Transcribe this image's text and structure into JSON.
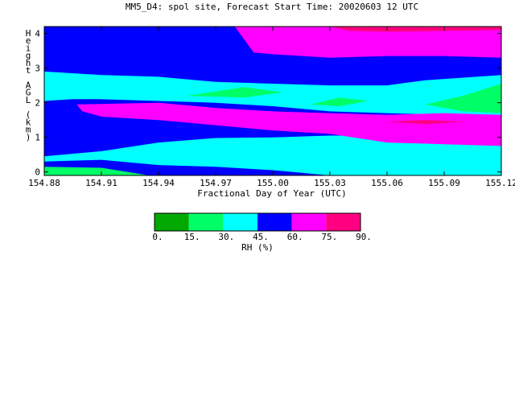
{
  "chart_data": {
    "type": "heatmap",
    "title": "MM5_D4: spol site,  Forecast Start Time: 20020603 12 UTC",
    "xlabel": "Fractional Day of Year (UTC)",
    "ylabel": "Height AGL (km)",
    "x_ticks": [
      "154.88",
      "154.91",
      "154.94",
      "154.97",
      "155.00",
      "155.03",
      "155.06",
      "155.09",
      "155.12"
    ],
    "y_ticks": [
      "0",
      "1",
      "2",
      "3",
      "4"
    ],
    "xlim": [
      154.88,
      155.12
    ],
    "ylim": [
      -0.1,
      4.2
    ],
    "colorbar": {
      "label": "RH (%)",
      "ticks": [
        "0.",
        "15.",
        "30.",
        "45.",
        "60.",
        "75.",
        "90."
      ],
      "bins": [
        {
          "range": [
            0,
            15
          ],
          "color": "#00a800"
        },
        {
          "range": [
            15,
            30
          ],
          "color": "#00ff66"
        },
        {
          "range": [
            30,
            45
          ],
          "color": "#00ffff"
        },
        {
          "range": [
            45,
            60
          ],
          "color": "#0000ff"
        },
        {
          "range": [
            60,
            75
          ],
          "color": "#ff00ff"
        },
        {
          "range": [
            75,
            90
          ],
          "color": "#ff0080"
        }
      ]
    },
    "regions": [
      {
        "rh_bin": "45-60",
        "color": "#0000ff",
        "points": [
          [
            154.88,
            -0.1
          ],
          [
            155.12,
            -0.1
          ],
          [
            155.12,
            4.2
          ],
          [
            154.88,
            4.2
          ]
        ]
      },
      {
        "rh_bin": "30-45",
        "color": "#00ffff",
        "points": [
          [
            154.88,
            0.45
          ],
          [
            154.91,
            0.6
          ],
          [
            154.94,
            0.85
          ],
          [
            154.97,
            0.98
          ],
          [
            155.0,
            1.0
          ],
          [
            155.03,
            1.05
          ],
          [
            155.06,
            1.05
          ],
          [
            155.09,
            1.05
          ],
          [
            155.12,
            1.05
          ],
          [
            155.12,
            -0.1
          ],
          [
            155.03,
            -0.1
          ],
          [
            155.0,
            0.05
          ],
          [
            154.97,
            0.15
          ],
          [
            154.94,
            0.2
          ],
          [
            154.91,
            0.35
          ],
          [
            154.88,
            0.3
          ]
        ]
      },
      {
        "rh_bin": "15-30",
        "color": "#00ff66",
        "points": [
          [
            154.88,
            -0.1
          ],
          [
            154.88,
            0.15
          ],
          [
            154.91,
            0.12
          ],
          [
            154.935,
            -0.1
          ]
        ]
      },
      {
        "rh_bin": "30-45",
        "color": "#00ffff",
        "points": [
          [
            154.88,
            2.9
          ],
          [
            154.91,
            2.8
          ],
          [
            154.94,
            2.75
          ],
          [
            154.97,
            2.6
          ],
          [
            155.0,
            2.55
          ],
          [
            155.03,
            2.5
          ],
          [
            155.06,
            2.5
          ],
          [
            155.08,
            2.65
          ],
          [
            155.12,
            2.8
          ],
          [
            155.12,
            1.6
          ],
          [
            155.09,
            1.65
          ],
          [
            155.06,
            1.7
          ],
          [
            155.03,
            1.75
          ],
          [
            155.0,
            1.9
          ],
          [
            154.97,
            2.0
          ],
          [
            154.94,
            2.05
          ],
          [
            154.91,
            2.1
          ],
          [
            154.895,
            2.1
          ],
          [
            154.88,
            2.05
          ]
        ]
      },
      {
        "rh_bin": "15-30",
        "color": "#00ff66",
        "points": [
          [
            154.955,
            2.2
          ],
          [
            154.985,
            2.45
          ],
          [
            155.005,
            2.3
          ],
          [
            154.985,
            2.15
          ]
        ]
      },
      {
        "rh_bin": "15-30",
        "color": "#00ff66",
        "points": [
          [
            155.02,
            1.95
          ],
          [
            155.035,
            2.15
          ],
          [
            155.05,
            2.05
          ],
          [
            155.035,
            1.9
          ]
        ]
      },
      {
        "rh_bin": "15-30",
        "color": "#00ff66",
        "points": [
          [
            155.08,
            1.95
          ],
          [
            155.1,
            2.2
          ],
          [
            155.12,
            2.55
          ],
          [
            155.12,
            1.7
          ],
          [
            155.1,
            1.75
          ]
        ]
      },
      {
        "rh_bin": "60-75",
        "color": "#ff00ff",
        "points": [
          [
            154.897,
            1.95
          ],
          [
            154.94,
            2.0
          ],
          [
            154.97,
            1.85
          ],
          [
            155.0,
            1.75
          ],
          [
            155.03,
            1.7
          ],
          [
            155.06,
            1.65
          ],
          [
            155.09,
            1.7
          ],
          [
            155.12,
            1.65
          ],
          [
            155.12,
            0.75
          ],
          [
            155.09,
            0.8
          ],
          [
            155.06,
            0.85
          ],
          [
            155.03,
            1.1
          ],
          [
            155.0,
            1.2
          ],
          [
            154.97,
            1.35
          ],
          [
            154.94,
            1.5
          ],
          [
            154.91,
            1.6
          ],
          [
            154.9,
            1.75
          ]
        ]
      },
      {
        "rh_bin": "75-90",
        "color": "#ff0080",
        "points": [
          [
            155.06,
            1.45
          ],
          [
            155.08,
            1.5
          ],
          [
            155.1,
            1.45
          ],
          [
            155.08,
            1.38
          ]
        ]
      },
      {
        "rh_bin": "60-75",
        "color": "#ff00ff",
        "points": [
          [
            154.98,
            4.2
          ],
          [
            155.12,
            4.2
          ],
          [
            155.12,
            3.3
          ],
          [
            155.09,
            3.35
          ],
          [
            155.06,
            3.35
          ],
          [
            155.03,
            3.3
          ],
          [
            155.0,
            3.4
          ],
          [
            154.99,
            3.45
          ]
        ]
      },
      {
        "rh_bin": "75-90",
        "color": "#ff0080",
        "points": [
          [
            155.03,
            4.2
          ],
          [
            155.12,
            4.2
          ],
          [
            155.12,
            4.1
          ],
          [
            155.06,
            4.05
          ],
          [
            155.04,
            4.08
          ]
        ]
      }
    ]
  }
}
